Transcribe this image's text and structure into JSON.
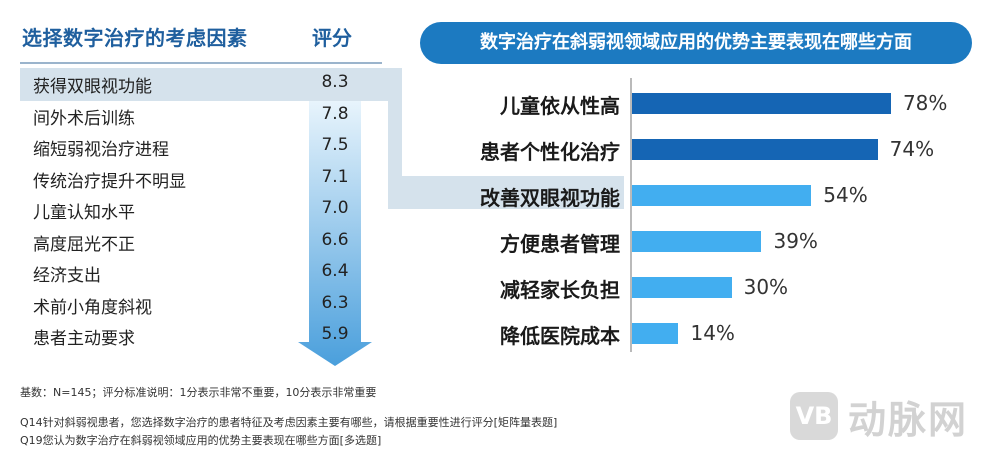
{
  "left_table": {
    "title": "选择数字治疗的考虑因素",
    "score_title": "评分"
  },
  "right_chart": {
    "title": "数字治疗在斜弱视领域应用的优势主要表现在哪些方面"
  },
  "footer": {
    "line1": "基数：N=145；评分标准说明：1分表示非常不重要，10分表示非常重要",
    "line2": "Q14针对斜弱视患者，您选择数字治疗的患者特征及考虑因素主要有哪些，请根据重要性进行评分[矩阵量表题]",
    "line3": "Q19您认为数字治疗在斜弱视领域应用的优势主要表现在哪些方面[多选题]"
  },
  "watermark": {
    "logo_text": "VB",
    "text": "动脉网"
  },
  "colors": {
    "title_blue": "#1f5f9e",
    "banner_blue": "#1c7ac1",
    "bar_dark": "#1565b4",
    "bar_light": "#42aef0",
    "highlight": "#d5e2ec",
    "arrow_top": "#e8f4fc",
    "arrow_bottom": "#4a9fdc"
  },
  "chart_data": [
    {
      "type": "table",
      "title": "选择数字治疗的考虑因素",
      "columns": [
        "选择数字治疗的考虑因素",
        "评分"
      ],
      "categories": [
        "获得双眼视功能",
        "间外术后训练",
        "缩短弱视治疗进程",
        "传统治疗提升不明显",
        "儿童认知水平",
        "高度屈光不正",
        "经济支出",
        "术前小角度斜视",
        "患者主动要求"
      ],
      "values": [
        8.3,
        7.8,
        7.5,
        7.1,
        7.0,
        6.6,
        6.4,
        6.3,
        5.9
      ],
      "display_values": [
        "8.3",
        "7.8",
        "7.5",
        "7.1",
        "7.0",
        "6.6",
        "6.4",
        "6.3",
        "5.9"
      ],
      "highlighted_index": 0
    },
    {
      "type": "bar",
      "orientation": "horizontal",
      "title": "数字治疗在斜弱视领域应用的优势主要表现在哪些方面",
      "categories": [
        "儿童依从性高",
        "患者个性化治疗",
        "改善双眼视功能",
        "方便患者管理",
        "减轻家长负担",
        "降低医院成本"
      ],
      "values": [
        78,
        74,
        54,
        39,
        30,
        14
      ],
      "value_labels": [
        "78%",
        "74%",
        "54%",
        "39%",
        "30%",
        "14%"
      ],
      "unit": "%",
      "xlim": [
        0,
        100
      ],
      "dark_bar_count": 2,
      "highlighted_index": 2,
      "xlabel": "",
      "ylabel": ""
    }
  ]
}
